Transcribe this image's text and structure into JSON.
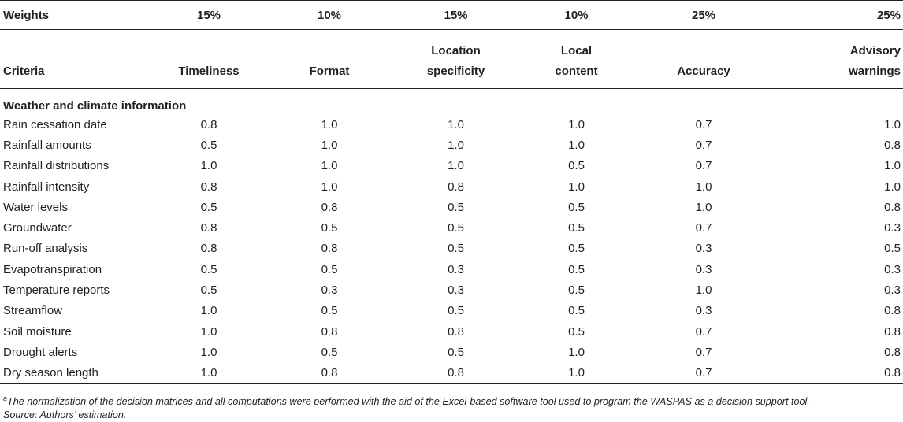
{
  "header": {
    "weights_label": "Weights",
    "weights": [
      "15%",
      "10%",
      "15%",
      "10%",
      "25%",
      "25%"
    ],
    "criteria_label": "Criteria",
    "criteria": [
      {
        "line1": "",
        "line2": "Timeliness"
      },
      {
        "line1": "",
        "line2": "Format"
      },
      {
        "line1": "Location",
        "line2": "specificity"
      },
      {
        "line1": "Local",
        "line2": "content"
      },
      {
        "line1": "",
        "line2": "Accuracy"
      },
      {
        "line1": "Advisory",
        "line2": "warnings"
      }
    ]
  },
  "section_title": "Weather and climate information",
  "rows": [
    {
      "name": "Rain cessation date",
      "values": [
        "0.8",
        "1.0",
        "1.0",
        "1.0",
        "0.7",
        "1.0"
      ]
    },
    {
      "name": "Rainfall amounts",
      "values": [
        "0.5",
        "1.0",
        "1.0",
        "1.0",
        "0.7",
        "0.8"
      ]
    },
    {
      "name": "Rainfall distributions",
      "values": [
        "1.0",
        "1.0",
        "1.0",
        "0.5",
        "0.7",
        "1.0"
      ]
    },
    {
      "name": "Rainfall intensity",
      "values": [
        "0.8",
        "1.0",
        "0.8",
        "1.0",
        "1.0",
        "1.0"
      ]
    },
    {
      "name": "Water levels",
      "values": [
        "0.5",
        "0.8",
        "0.5",
        "0.5",
        "1.0",
        "0.8"
      ]
    },
    {
      "name": "Groundwater",
      "values": [
        "0.8",
        "0.5",
        "0.5",
        "0.5",
        "0.7",
        "0.3"
      ]
    },
    {
      "name": "Run-off analysis",
      "values": [
        "0.8",
        "0.8",
        "0.5",
        "0.5",
        "0.3",
        "0.5"
      ]
    },
    {
      "name": "Evapotranspiration",
      "values": [
        "0.5",
        "0.5",
        "0.3",
        "0.5",
        "0.3",
        "0.3"
      ]
    },
    {
      "name": "Temperature reports",
      "values": [
        "0.5",
        "0.3",
        "0.3",
        "0.5",
        "1.0",
        "0.3"
      ]
    },
    {
      "name": "Streamflow",
      "values": [
        "1.0",
        "0.5",
        "0.5",
        "0.5",
        "0.3",
        "0.8"
      ]
    },
    {
      "name": "Soil moisture",
      "values": [
        "1.0",
        "0.8",
        "0.8",
        "0.5",
        "0.7",
        "0.8"
      ]
    },
    {
      "name": "Drought alerts",
      "values": [
        "1.0",
        "0.5",
        "0.5",
        "1.0",
        "0.7",
        "0.8"
      ]
    },
    {
      "name": "Dry season length",
      "values": [
        "1.0",
        "0.8",
        "0.8",
        "1.0",
        "0.7",
        "0.8"
      ]
    }
  ],
  "footnote": {
    "marker": "a",
    "text": "The normalization of the decision matrices and all computations were performed with the aid of the Excel-based software tool used to program the WASPAS as a decision support tool.",
    "source": "Source: Authors’ estimation."
  }
}
